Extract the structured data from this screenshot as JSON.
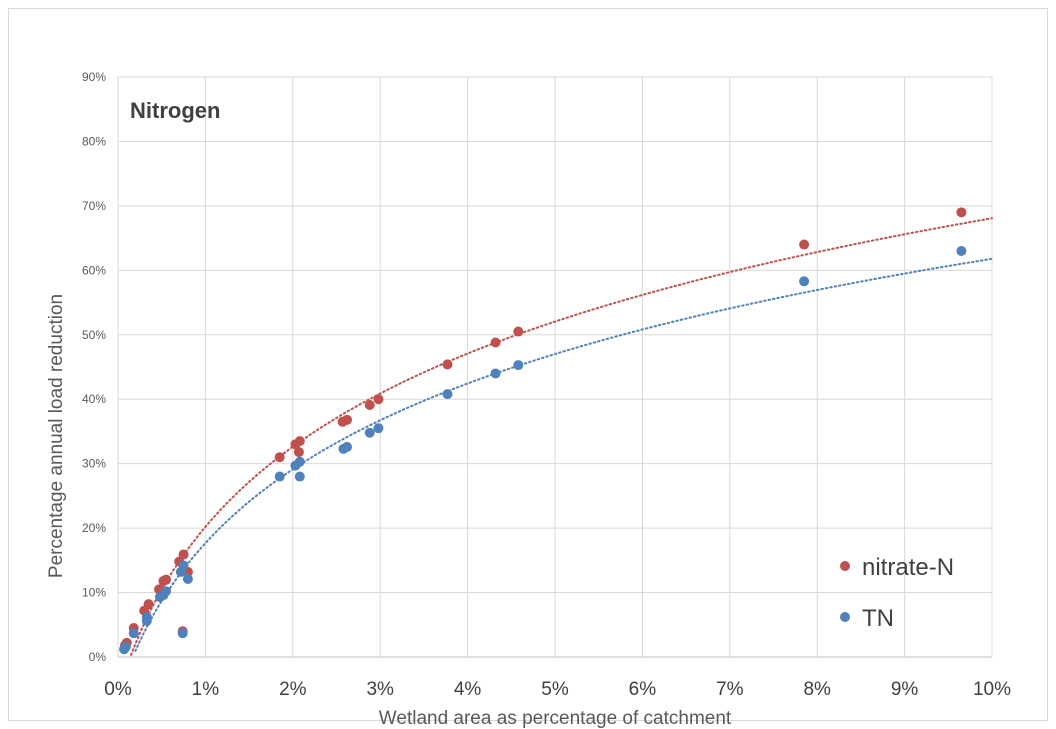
{
  "chart_data": {
    "type": "scatter",
    "title": "Nitrogen",
    "xlabel": "Wetland area as percentage of catchment",
    "ylabel": "Percentage annual load reduction",
    "xlim": [
      0,
      10
    ],
    "ylim": [
      0,
      90
    ],
    "x_unit": "%",
    "y_unit": "%",
    "x_ticks": [
      "0%",
      "1%",
      "2%",
      "3%",
      "4%",
      "5%",
      "6%",
      "7%",
      "8%",
      "9%",
      "10%"
    ],
    "y_ticks": [
      "0%",
      "10%",
      "20%",
      "30%",
      "40%",
      "50%",
      "60%",
      "70%",
      "80%",
      "90%"
    ],
    "grid": true,
    "legend_position": "bottom-right",
    "series": [
      {
        "name": "nitrate-N",
        "color": "#c0504d",
        "trendline": "dotted",
        "points": [
          [
            0.08,
            1.8
          ],
          [
            0.1,
            2.2
          ],
          [
            0.18,
            4.5
          ],
          [
            0.3,
            7.2
          ],
          [
            0.35,
            8.2
          ],
          [
            0.47,
            10.5
          ],
          [
            0.52,
            11.8
          ],
          [
            0.55,
            12.0
          ],
          [
            0.7,
            14.8
          ],
          [
            0.75,
            15.9
          ],
          [
            0.8,
            13.2
          ],
          [
            0.74,
            4.0
          ],
          [
            1.85,
            31.0
          ],
          [
            2.03,
            33.0
          ],
          [
            2.08,
            33.5
          ],
          [
            2.07,
            31.8
          ],
          [
            2.57,
            36.5
          ],
          [
            2.62,
            36.8
          ],
          [
            2.88,
            39.1
          ],
          [
            2.98,
            40.0
          ],
          [
            3.77,
            45.4
          ],
          [
            4.32,
            48.8
          ],
          [
            4.58,
            50.5
          ],
          [
            7.85,
            64.0
          ],
          [
            9.65,
            69.0
          ]
        ]
      },
      {
        "name": "TN",
        "color": "#4f81bd",
        "trendline": "dotted",
        "points": [
          [
            0.07,
            1.2
          ],
          [
            0.09,
            1.6
          ],
          [
            0.18,
            3.7
          ],
          [
            0.33,
            5.6
          ],
          [
            0.33,
            6.2
          ],
          [
            0.48,
            9.3
          ],
          [
            0.52,
            9.6
          ],
          [
            0.55,
            10.2
          ],
          [
            0.72,
            13.2
          ],
          [
            0.75,
            14.2
          ],
          [
            0.8,
            12.1
          ],
          [
            0.74,
            3.7
          ],
          [
            1.85,
            28.0
          ],
          [
            2.03,
            29.7
          ],
          [
            2.08,
            30.3
          ],
          [
            2.08,
            28.0
          ],
          [
            2.58,
            32.3
          ],
          [
            2.62,
            32.6
          ],
          [
            2.88,
            34.8
          ],
          [
            2.98,
            35.5
          ],
          [
            3.77,
            40.8
          ],
          [
            4.32,
            44.0
          ],
          [
            4.58,
            45.3
          ],
          [
            7.85,
            58.3
          ],
          [
            9.65,
            63.0
          ]
        ]
      }
    ]
  }
}
